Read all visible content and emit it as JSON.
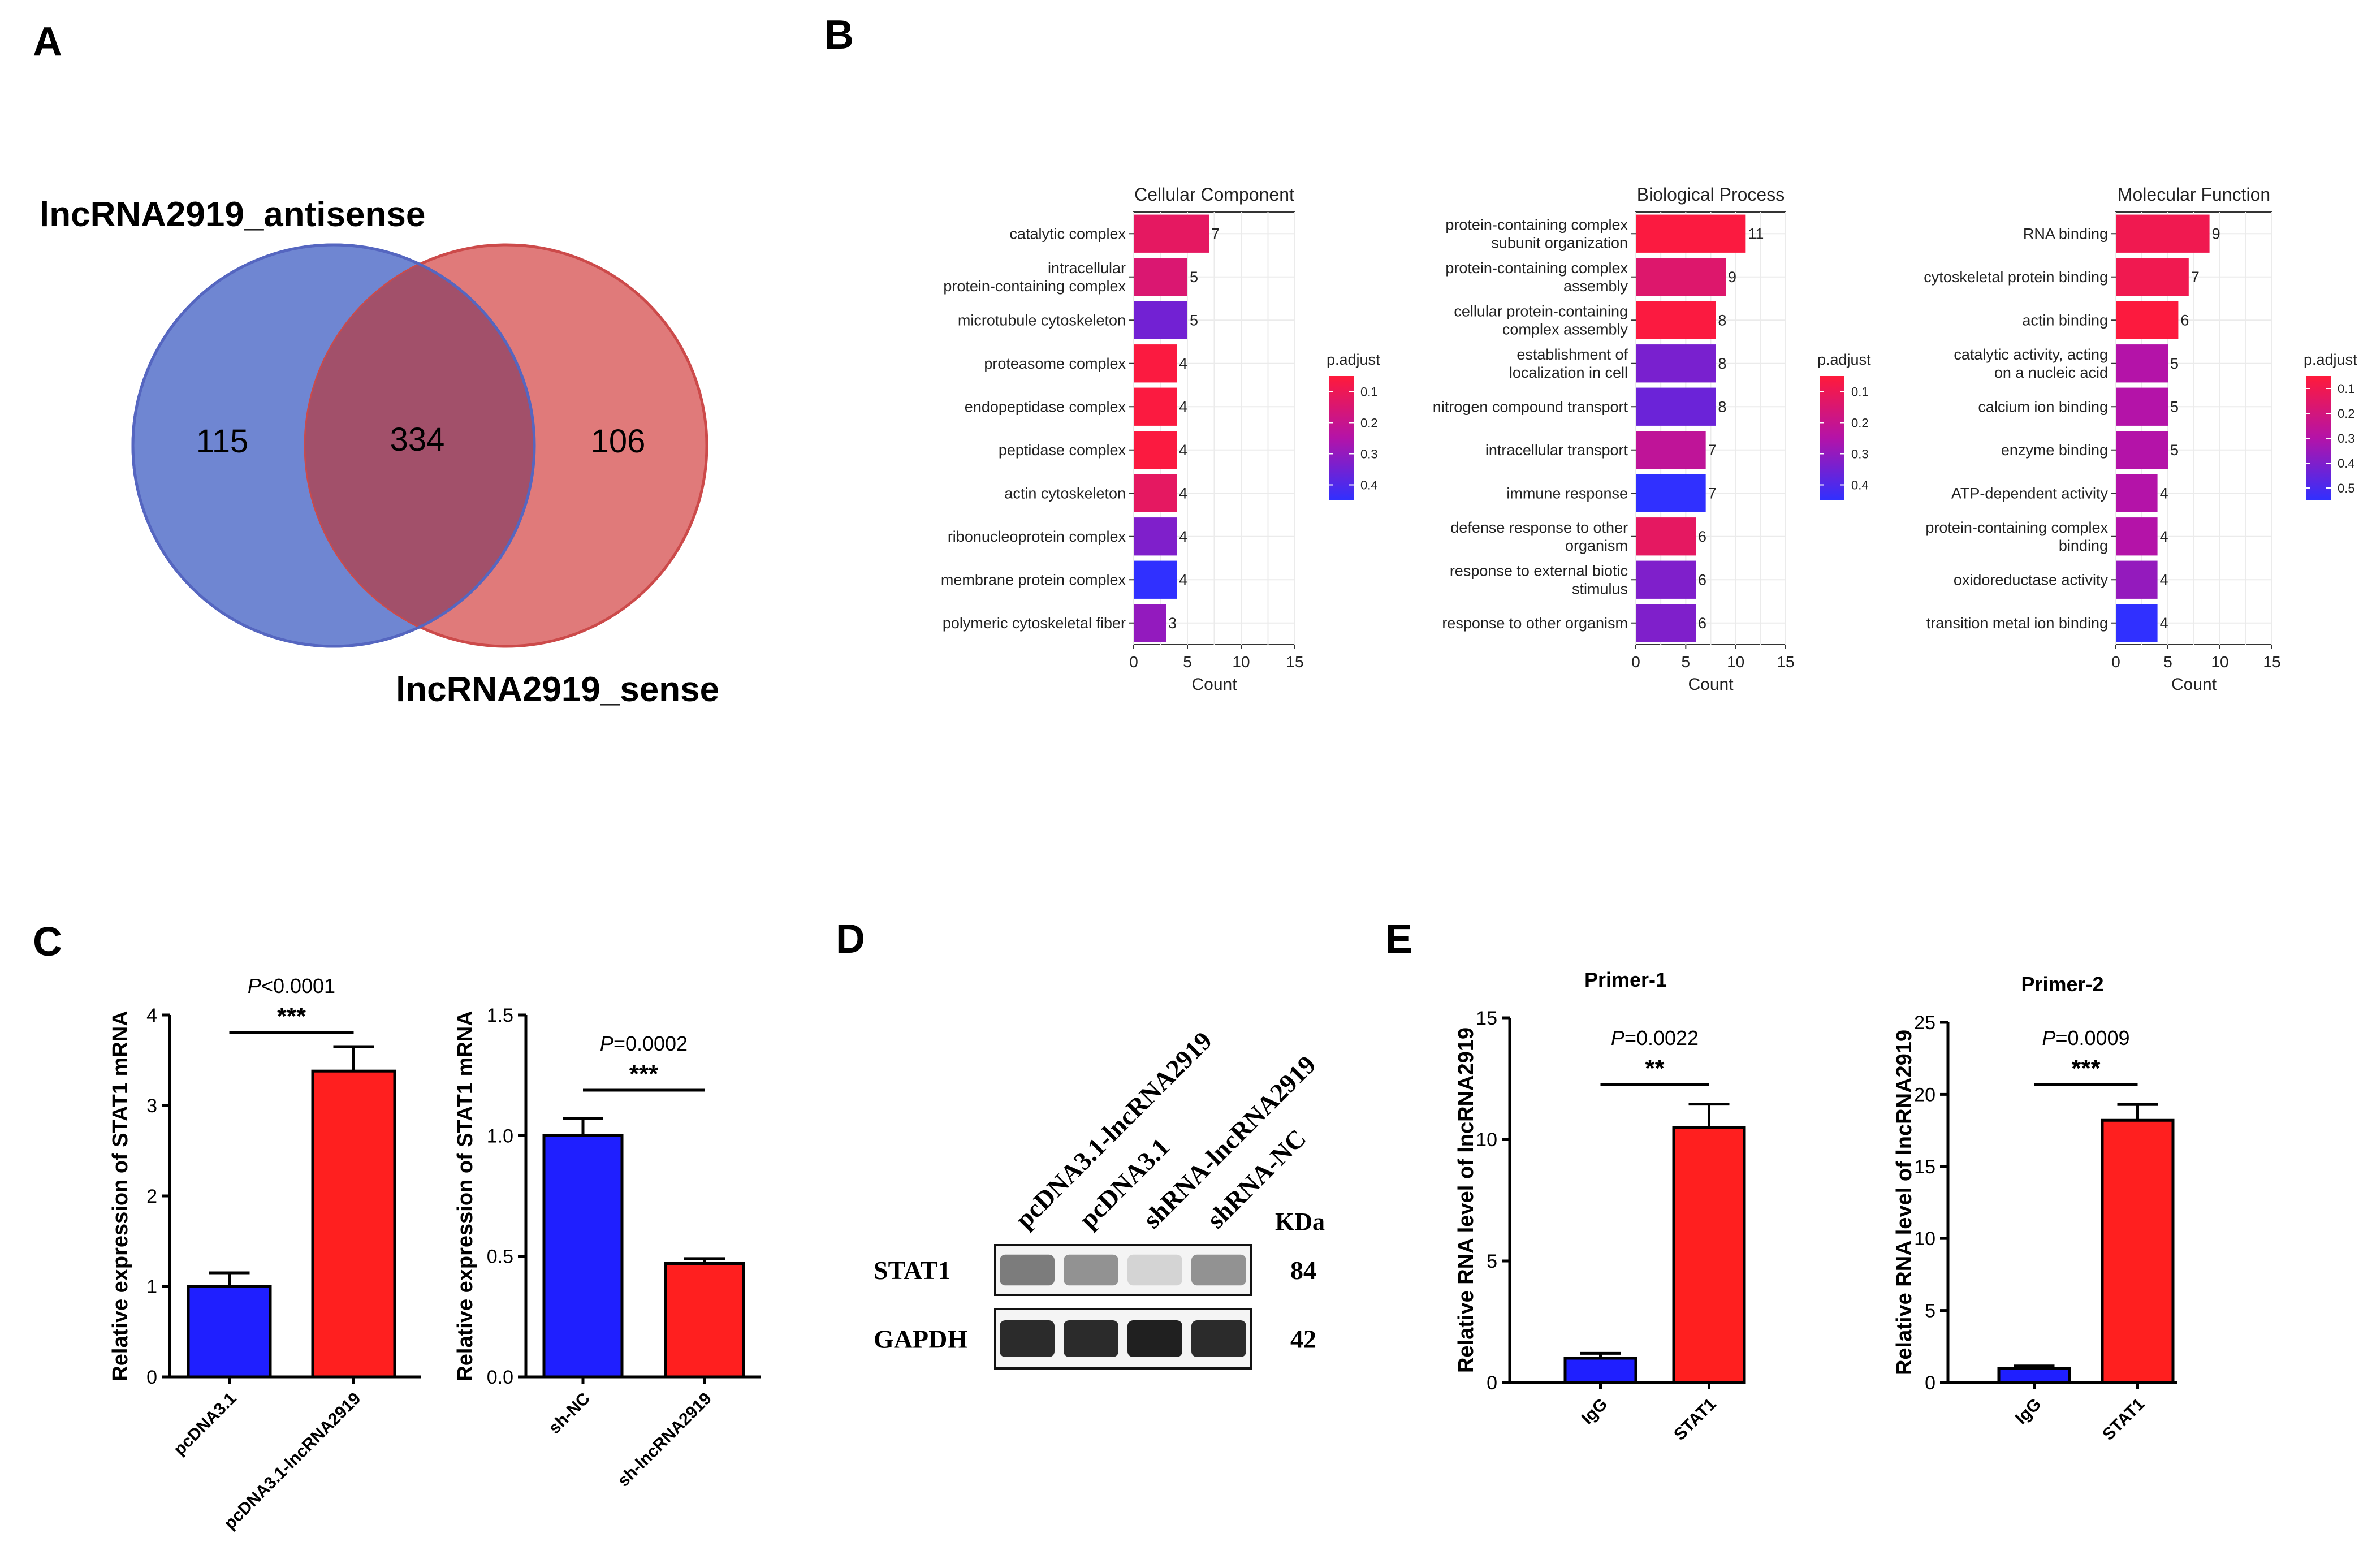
{
  "panel_labels": [
    "A",
    "B",
    "C",
    "D",
    "E"
  ],
  "colors": {
    "blue": "#1f1fff",
    "red": "#ff1f1f",
    "venn_blue": "#6f86d2",
    "venn_red": "#e06a6a",
    "venn_overlap": "#a2506a",
    "padj_high": "#f0173a",
    "padj_low": "#2a2aff"
  },
  "venn": {
    "set_a": "lncRNA2919_antisense",
    "set_b": "lncRNA2919_sense",
    "only_a": "115",
    "both": "334",
    "only_b": "106"
  },
  "chart_data": [
    {
      "id": "go_cc",
      "type": "bar",
      "orientation": "horizontal",
      "title": "Cellular Component",
      "xlabel": "Count",
      "xlim": [
        0,
        15
      ],
      "xticks": [
        "0",
        "5",
        "10",
        "15"
      ],
      "legend_title": "p.adjust",
      "legend_ticks": [
        "0.1",
        "0.2",
        "0.3",
        "0.4"
      ],
      "legend_range": [
        0.05,
        0.45
      ],
      "categories": [
        [
          "catalytic complex"
        ],
        [
          "intracellular",
          "protein-containing complex"
        ],
        [
          "microtubule cytoskeleton"
        ],
        [
          "proteasome complex"
        ],
        [
          "endopeptidase complex"
        ],
        [
          "peptidase complex"
        ],
        [
          "actin cytoskeleton"
        ],
        [
          "ribonucleoprotein complex"
        ],
        [
          "membrane protein complex"
        ],
        [
          "polymeric cytoskeletal fiber"
        ]
      ],
      "values": [
        7,
        5,
        5,
        4,
        4,
        4,
        4,
        4,
        4,
        3
      ],
      "p_adjust": [
        0.12,
        0.15,
        0.35,
        0.06,
        0.06,
        0.06,
        0.12,
        0.33,
        0.45,
        0.3
      ]
    },
    {
      "id": "go_bp",
      "type": "bar",
      "orientation": "horizontal",
      "title": "Biological Process",
      "xlabel": "Count",
      "xlim": [
        0,
        15
      ],
      "xticks": [
        "0",
        "5",
        "10",
        "15"
      ],
      "legend_title": "p.adjust",
      "legend_ticks": [
        "0.1",
        "0.2",
        "0.3",
        "0.4"
      ],
      "legend_range": [
        0.05,
        0.45
      ],
      "categories": [
        [
          "protein-containing complex",
          "subunit organization"
        ],
        [
          "protein-containing complex",
          "assembly"
        ],
        [
          "cellular protein-containing",
          "complex assembly"
        ],
        [
          "establishment of",
          "localization in cell"
        ],
        [
          "nitrogen compound transport"
        ],
        [
          "intracellular transport"
        ],
        [
          "immune response"
        ],
        [
          "defense response to other",
          "organism"
        ],
        [
          "response to external biotic",
          "stimulus"
        ],
        [
          "response to other organism"
        ]
      ],
      "values": [
        11,
        9,
        8,
        8,
        8,
        7,
        7,
        6,
        6,
        6
      ],
      "p_adjust": [
        0.06,
        0.14,
        0.06,
        0.34,
        0.36,
        0.22,
        0.45,
        0.12,
        0.33,
        0.33
      ]
    },
    {
      "id": "go_mf",
      "type": "bar",
      "orientation": "horizontal",
      "title": "Molecular Function",
      "xlabel": "Count",
      "xlim": [
        0,
        15
      ],
      "xticks": [
        "0",
        "5",
        "10",
        "15"
      ],
      "legend_title": "p.adjust",
      "legend_ticks": [
        "0.1",
        "0.2",
        "0.3",
        "0.4",
        "0.5"
      ],
      "legend_range": [
        0.05,
        0.55
      ],
      "categories": [
        [
          "RNA binding"
        ],
        [
          "cytoskeletal protein binding"
        ],
        [
          "actin binding"
        ],
        [
          "catalytic activity, acting",
          "on a nucleic acid"
        ],
        [
          "calcium ion binding"
        ],
        [
          "enzyme binding"
        ],
        [
          "ATP-dependent activity"
        ],
        [
          "protein-containing complex",
          "binding"
        ],
        [
          "oxidoreductase activity"
        ],
        [
          "transition metal ion binding"
        ]
      ],
      "values": [
        9,
        7,
        6,
        5,
        5,
        5,
        4,
        4,
        4,
        4
      ],
      "p_adjust": [
        0.1,
        0.1,
        0.06,
        0.3,
        0.3,
        0.3,
        0.3,
        0.3,
        0.36,
        0.55
      ]
    },
    {
      "id": "c1",
      "type": "bar",
      "title": "",
      "ylabel": "Relative expression of STAT1 mRNA",
      "ylim": [
        0,
        4
      ],
      "yticks": [
        "0",
        "1",
        "2",
        "3",
        "4"
      ],
      "categories": [
        "pcDNA3.1",
        "pcDNA3.1-lncRNA2919"
      ],
      "values": [
        1.0,
        3.38
      ],
      "errors": [
        0.15,
        0.27
      ],
      "p_text": "<0.0001",
      "sig": "***"
    },
    {
      "id": "c2",
      "type": "bar",
      "title": "",
      "ylabel": "Relative expression of STAT1 mRNA",
      "ylim": [
        0,
        1.5
      ],
      "yticks": [
        "0.0",
        "0.5",
        "1.0",
        "1.5"
      ],
      "categories": [
        "sh-NC",
        "sh-lncRNA2919"
      ],
      "values": [
        1.0,
        0.47
      ],
      "errors": [
        0.07,
        0.02
      ],
      "p_text": "=0.0002",
      "sig": "***"
    },
    {
      "id": "e1",
      "type": "bar",
      "title": "Primer-1",
      "ylabel": "Relative RNA level of lncRNA2919",
      "ylim": [
        0,
        15
      ],
      "yticks": [
        "0",
        "5",
        "10",
        "15"
      ],
      "categories": [
        "IgG",
        "STAT1"
      ],
      "values": [
        1.0,
        10.5
      ],
      "errors": [
        0.2,
        0.95
      ],
      "p_text": "=0.0022",
      "sig": "**"
    },
    {
      "id": "e2",
      "type": "bar",
      "title": "Primer-2",
      "ylabel": "Relative RNA level of lncRNA2919",
      "ylim": [
        0,
        25
      ],
      "yticks": [
        "0",
        "5",
        "10",
        "15",
        "20",
        "25"
      ],
      "categories": [
        "IgG",
        "STAT1"
      ],
      "values": [
        1.0,
        18.2
      ],
      "errors": [
        0.15,
        1.1
      ],
      "p_text": "=0.0009",
      "sig": "***"
    }
  ],
  "western": {
    "lanes": [
      "pcDNA3.1-lncRNA2919",
      "pcDNA3.1",
      "shRNA-lncRNA2919",
      "shRNA-NC"
    ],
    "kda_label": "KDa",
    "rows": [
      {
        "label": "STAT1",
        "kda": "84",
        "intensity": [
          0.55,
          0.45,
          0.15,
          0.45
        ]
      },
      {
        "label": "GAPDH",
        "kda": "42",
        "intensity": [
          0.92,
          0.92,
          0.97,
          0.92
        ]
      }
    ]
  }
}
